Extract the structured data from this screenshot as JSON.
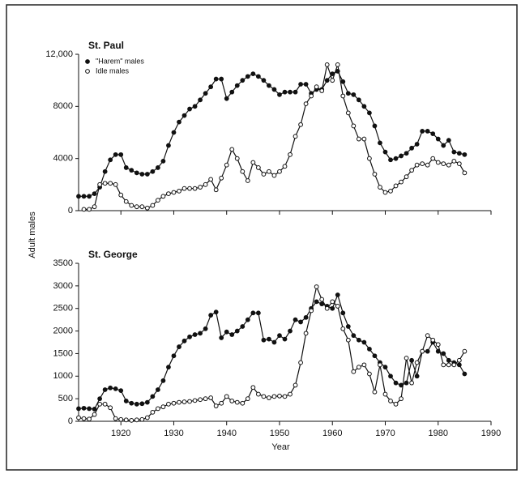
{
  "figure": {
    "ylabel": "Adult males"
  },
  "chart_data": [
    {
      "type": "line",
      "title": "St. Paul",
      "x": [
        1912,
        1913,
        1914,
        1915,
        1916,
        1917,
        1918,
        1919,
        1920,
        1921,
        1922,
        1923,
        1924,
        1925,
        1926,
        1927,
        1928,
        1929,
        1930,
        1931,
        1932,
        1933,
        1934,
        1935,
        1936,
        1937,
        1938,
        1939,
        1940,
        1941,
        1942,
        1943,
        1944,
        1945,
        1946,
        1947,
        1948,
        1949,
        1950,
        1951,
        1952,
        1953,
        1954,
        1955,
        1956,
        1957,
        1958,
        1959,
        1960,
        1961,
        1962,
        1963,
        1964,
        1965,
        1966,
        1967,
        1968,
        1969,
        1970,
        1971,
        1972,
        1973,
        1974,
        1975,
        1976,
        1977,
        1978,
        1979,
        1980,
        1981,
        1982,
        1983,
        1984,
        1985
      ],
      "series": [
        {
          "name": "\"Harem\" males",
          "color": "#111111",
          "marker": "filled",
          "values": [
            1100,
            1100,
            1100,
            1300,
            1800,
            3000,
            3900,
            4300,
            4300,
            3300,
            3100,
            2900,
            2800,
            2800,
            3000,
            3300,
            3800,
            5000,
            6000,
            6800,
            7300,
            7800,
            8000,
            8500,
            9000,
            9500,
            10100,
            10100,
            8600,
            9100,
            9600,
            10000,
            10300,
            10500,
            10300,
            10000,
            9600,
            9300,
            8900,
            9100,
            9100,
            9100,
            9700,
            9700,
            9000,
            9300,
            9300,
            10000,
            10500,
            10700,
            9900,
            9000,
            8900,
            8500,
            8000,
            7500,
            6500,
            5200,
            4500,
            3900,
            4000,
            4200,
            4400,
            4800,
            5100,
            6100,
            6100,
            5900,
            5500,
            5000,
            5400,
            4500,
            4400,
            4300
          ]
        },
        {
          "name": "Idle males",
          "color": "#111111",
          "marker": "open",
          "values": [
            null,
            100,
            100,
            300,
            2000,
            2100,
            2100,
            2000,
            1200,
            700,
            400,
            300,
            300,
            200,
            400,
            800,
            1100,
            1300,
            1400,
            1500,
            1700,
            1700,
            1700,
            1800,
            2000,
            2400,
            1600,
            2500,
            3500,
            4700,
            4000,
            3000,
            2300,
            3700,
            3300,
            2800,
            3000,
            2700,
            3000,
            3400,
            4300,
            5700,
            6600,
            8200,
            8800,
            9500,
            9200,
            11200,
            10000,
            11200,
            8800,
            7500,
            6500,
            5500,
            5500,
            4000,
            2800,
            1800,
            1400,
            1500,
            1900,
            2200,
            2600,
            3100,
            3500,
            3600,
            3500,
            4000,
            3700,
            3600,
            3500,
            3800,
            3600,
            2900
          ]
        }
      ],
      "xlim": [
        1912,
        1990
      ],
      "xticks": [
        1920,
        1930,
        1940,
        1950,
        1960,
        1970,
        1980,
        1990
      ],
      "xtick_labels": false,
      "ylim": [
        0,
        12000
      ],
      "yticks": [
        0,
        4000,
        8000,
        {
          "value": 12000,
          "label": "12,000"
        }
      ],
      "legend": "upper left"
    },
    {
      "type": "line",
      "title": "St. George",
      "xlabel": "Year",
      "x": [
        1912,
        1913,
        1914,
        1915,
        1916,
        1917,
        1918,
        1919,
        1920,
        1921,
        1922,
        1923,
        1924,
        1925,
        1926,
        1927,
        1928,
        1929,
        1930,
        1931,
        1932,
        1933,
        1934,
        1935,
        1936,
        1937,
        1938,
        1939,
        1940,
        1941,
        1942,
        1943,
        1944,
        1945,
        1946,
        1947,
        1948,
        1949,
        1950,
        1951,
        1952,
        1953,
        1954,
        1955,
        1956,
        1957,
        1958,
        1959,
        1960,
        1961,
        1962,
        1963,
        1964,
        1965,
        1966,
        1967,
        1968,
        1969,
        1970,
        1971,
        1972,
        1973,
        1974,
        1975,
        1976,
        1977,
        1978,
        1979,
        1980,
        1981,
        1982,
        1983,
        1984,
        1985
      ],
      "series": [
        {
          "color": "#111111",
          "marker": "filled",
          "values": [
            280,
            290,
            280,
            270,
            500,
            700,
            740,
            720,
            680,
            450,
            400,
            380,
            390,
            420,
            550,
            700,
            900,
            1200,
            1450,
            1650,
            1780,
            1870,
            1920,
            1950,
            2050,
            2350,
            2420,
            1850,
            1980,
            1920,
            2000,
            2100,
            2250,
            2400,
            2400,
            1800,
            1820,
            1750,
            1900,
            1820,
            2000,
            2250,
            2200,
            2300,
            2500,
            2650,
            2600,
            2550,
            2500,
            2800,
            2400,
            2100,
            1900,
            1800,
            1750,
            1600,
            1450,
            1300,
            1200,
            1000,
            850,
            800,
            850,
            1350,
            1000,
            1550,
            1550,
            1750,
            1550,
            1500,
            1350,
            1300,
            1250,
            1050
          ]
        },
        {
          "color": "#111111",
          "marker": "open",
          "values": [
            80,
            60,
            50,
            150,
            380,
            380,
            300,
            60,
            40,
            30,
            20,
            30,
            40,
            80,
            200,
            280,
            320,
            380,
            400,
            420,
            430,
            440,
            460,
            480,
            500,
            520,
            340,
            400,
            550,
            450,
            420,
            400,
            500,
            750,
            600,
            550,
            520,
            550,
            560,
            550,
            600,
            800,
            1300,
            1950,
            2450,
            2980,
            2700,
            2500,
            2650,
            2550,
            2050,
            1800,
            1100,
            1200,
            1250,
            1050,
            650,
            1250,
            600,
            450,
            380,
            500,
            1400,
            850,
            1300,
            1550,
            1900,
            1800,
            1700,
            1250,
            1250,
            1250,
            1350,
            1550
          ]
        }
      ],
      "xlim": [
        1912,
        1990
      ],
      "xticks": [
        1920,
        1930,
        1940,
        1950,
        1960,
        1970,
        1980,
        1990
      ],
      "ylim": [
        0,
        3500
      ],
      "yticks": [
        0,
        500,
        1000,
        1500,
        2000,
        2500,
        3000,
        3500
      ]
    }
  ]
}
